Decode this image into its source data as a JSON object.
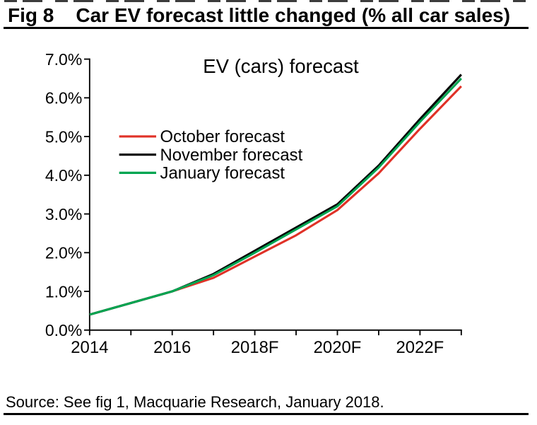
{
  "header": {
    "fig_label": "Fig 8",
    "title": "Car EV forecast little changed (% all car sales)"
  },
  "source": {
    "text": "Source: See fig 1, Macquarie Research, January 2018."
  },
  "chart_data": {
    "type": "line",
    "title": "EV (cars) forecast",
    "x": [
      2014,
      2015,
      2016,
      2017,
      2018,
      2019,
      2020,
      2021,
      2022,
      2023
    ],
    "x_tick_labels": [
      "2014",
      "",
      "2016",
      "",
      "2018F",
      "",
      "2020F",
      "",
      "2022F",
      ""
    ],
    "y_tick_labels": [
      "0.0%",
      "1.0%",
      "2.0%",
      "3.0%",
      "4.0%",
      "5.0%",
      "6.0%",
      "7.0%"
    ],
    "ylim": [
      0,
      7
    ],
    "grid": false,
    "legend_position": "upper-left-inside",
    "series": [
      {
        "name": "October forecast",
        "color": "#e03127",
        "values": [
          0.4,
          0.7,
          1.0,
          1.35,
          1.9,
          2.45,
          3.1,
          4.05,
          5.2,
          6.3
        ]
      },
      {
        "name": "November forecast",
        "color": "#000000",
        "values": [
          0.4,
          0.7,
          1.0,
          1.45,
          2.05,
          2.65,
          3.25,
          4.25,
          5.45,
          6.6
        ]
      },
      {
        "name": "January forecast",
        "color": "#00a551",
        "values": [
          0.4,
          0.7,
          1.0,
          1.42,
          2.0,
          2.6,
          3.2,
          4.2,
          5.38,
          6.5
        ]
      }
    ]
  }
}
